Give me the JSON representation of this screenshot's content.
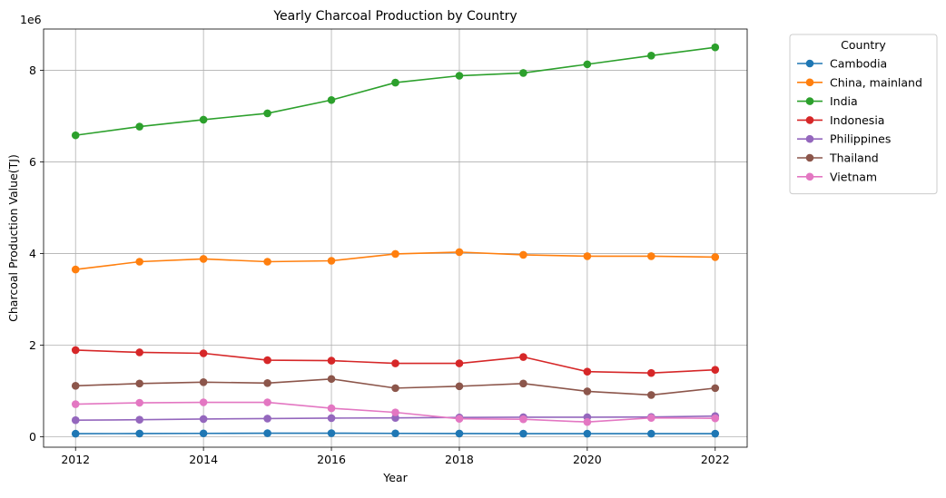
{
  "chart_data": {
    "type": "line",
    "title": "Yearly Charcoal Production by Country",
    "xlabel": "Year",
    "ylabel": "Charcoal Production Value(TJ)",
    "y_offset_label": "1e6",
    "x": [
      2012,
      2013,
      2014,
      2015,
      2016,
      2017,
      2018,
      2019,
      2020,
      2021,
      2022
    ],
    "x_ticks": [
      2012,
      2014,
      2016,
      2018,
      2020,
      2022
    ],
    "x_tick_labels": [
      "2012",
      "2014",
      "2016",
      "2018",
      "2020",
      "2022"
    ],
    "xlim": [
      2011.5,
      2022.5
    ],
    "y_ticks": [
      0,
      2000000,
      4000000,
      6000000,
      8000000
    ],
    "y_tick_labels": [
      "0",
      "2",
      "4",
      "6",
      "8"
    ],
    "ylim": [
      -230000,
      8900000
    ],
    "grid": true,
    "legend": {
      "title": "Country",
      "placement": "outside upper-right"
    },
    "series": [
      {
        "name": "Cambodia",
        "color": "#1f77b4",
        "values": [
          65000,
          68000,
          72000,
          75000,
          76000,
          72000,
          68000,
          66000,
          66000,
          65000,
          66000
        ]
      },
      {
        "name": "China, mainland",
        "color": "#ff7f0e",
        "values": [
          3650000,
          3820000,
          3880000,
          3820000,
          3840000,
          3990000,
          4030000,
          3970000,
          3940000,
          3940000,
          3920000
        ]
      },
      {
        "name": "India",
        "color": "#2ca02c",
        "values": [
          6580000,
          6770000,
          6920000,
          7060000,
          7350000,
          7730000,
          7880000,
          7940000,
          8130000,
          8320000,
          8500000
        ]
      },
      {
        "name": "Indonesia",
        "color": "#d62728",
        "values": [
          1890000,
          1840000,
          1820000,
          1670000,
          1660000,
          1600000,
          1600000,
          1740000,
          1420000,
          1390000,
          1460000
        ]
      },
      {
        "name": "Philippines",
        "color": "#9467bd",
        "values": [
          360000,
          370000,
          385000,
          395000,
          405000,
          410000,
          420000,
          425000,
          425000,
          430000,
          450000
        ]
      },
      {
        "name": "Thailand",
        "color": "#8c564b",
        "values": [
          1110000,
          1160000,
          1190000,
          1170000,
          1260000,
          1060000,
          1100000,
          1160000,
          990000,
          910000,
          1060000
        ]
      },
      {
        "name": "Vietnam",
        "color": "#e377c2",
        "values": [
          710000,
          740000,
          750000,
          750000,
          620000,
          530000,
          390000,
          380000,
          320000,
          410000,
          400000
        ]
      }
    ]
  }
}
